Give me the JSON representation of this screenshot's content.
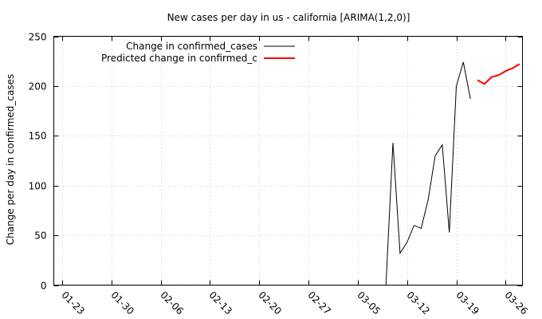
{
  "chart_data": {
    "type": "line",
    "title": "New cases per day in us - california [ARIMA(1,2,0)]",
    "xlabel": "",
    "ylabel": "Change per day in confirmed_cases",
    "ylim": [
      0,
      250
    ],
    "y_ticks": [
      0,
      50,
      100,
      150,
      200,
      250
    ],
    "x_ticks": [
      "01-23",
      "01-30",
      "02-06",
      "02-13",
      "02-20",
      "02-27",
      "03-05",
      "03-12",
      "03-19",
      "03-26"
    ],
    "x_range_days": [
      -1.2,
      65.4
    ],
    "grid": true,
    "legend_position": "top-left",
    "series": [
      {
        "name": "Change in confirmed_cases",
        "color": "#000000",
        "x": [
          "03-09",
          "03-10",
          "03-11",
          "03-12",
          "03-13",
          "03-14",
          "03-15",
          "03-16",
          "03-17",
          "03-18",
          "03-19",
          "03-20",
          "03-21"
        ],
        "y": [
          0,
          143,
          32,
          43,
          60,
          57,
          86,
          130,
          141,
          53,
          200,
          224,
          187
        ]
      },
      {
        "name": "Predicted change in confirmed_c",
        "color": "#ff0000",
        "x": [
          "03-22",
          "03-23",
          "03-24",
          "03-25",
          "03-26",
          "03-27",
          "03-28"
        ],
        "y": [
          206,
          202,
          209,
          211,
          215,
          218,
          222
        ]
      }
    ]
  }
}
